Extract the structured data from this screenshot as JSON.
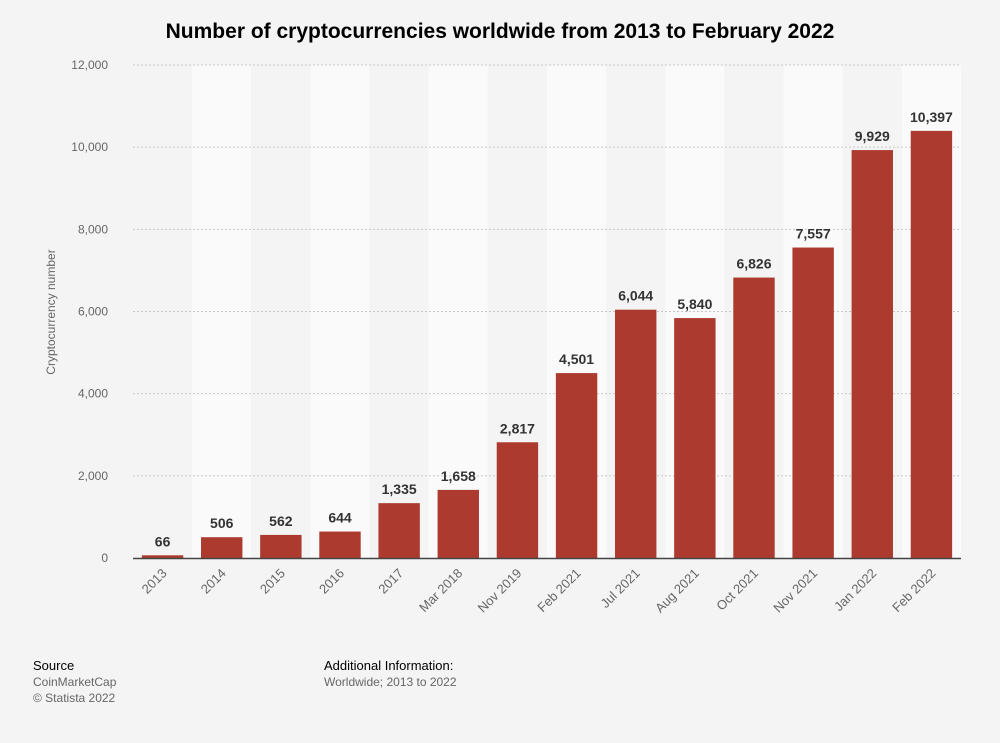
{
  "chart_data": {
    "type": "bar",
    "title": "Number of cryptocurrencies worldwide from 2013 to February 2022",
    "ylabel": "Cryptocurrency number",
    "xlabel": "",
    "ylim": [
      0,
      12000
    ],
    "yticks": [
      0,
      2000,
      4000,
      6000,
      8000,
      10000,
      12000
    ],
    "ytick_labels": [
      "0",
      "2,000",
      "4,000",
      "6,000",
      "8,000",
      "10,000",
      "12,000"
    ],
    "categories": [
      "2013",
      "2014",
      "2015",
      "2016",
      "2017",
      "Mar 2018",
      "Nov 2019",
      "Feb 2021",
      "Jul 2021",
      "Aug 2021",
      "Oct 2021",
      "Nov 2021",
      "Jan 2022",
      "Feb 2022"
    ],
    "values": [
      66,
      506,
      562,
      644,
      1335,
      1658,
      2817,
      4501,
      6044,
      5840,
      6826,
      7557,
      9929,
      10397
    ],
    "value_labels": [
      "66",
      "506",
      "562",
      "644",
      "1,335",
      "1,658",
      "2,817",
      "4,501",
      "6,044",
      "5,840",
      "6,826",
      "7,557",
      "9,929",
      "10,397"
    ],
    "bar_color": "#ad3a2e",
    "grid": true,
    "legend": "none"
  },
  "footer": {
    "source_heading": "Source",
    "source_lines": [
      "CoinMarketCap",
      "© Statista 2022"
    ],
    "info_heading": "Additional Information:",
    "info_text": "Worldwide; 2013 to 2022"
  }
}
